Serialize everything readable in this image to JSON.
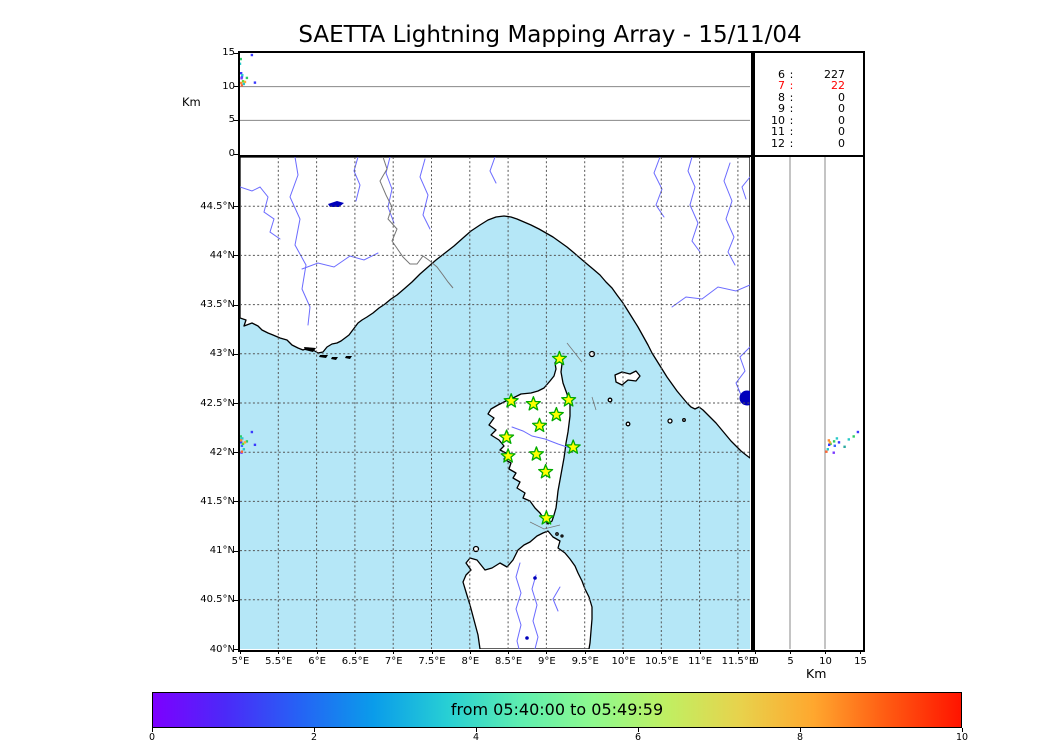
{
  "title": "SAETTA Lightning Mapping Array - 15/11/04",
  "altitude_panel": {
    "ylabel": "Km",
    "yticks": [
      {
        "v": 15,
        "label": "15"
      },
      {
        "v": 10,
        "label": "10"
      },
      {
        "v": 5,
        "label": "5"
      },
      {
        "v": 0,
        "label": "0"
      }
    ]
  },
  "stats_panel": {
    "rows": [
      {
        "label": "6",
        "value": "227",
        "highlight": false
      },
      {
        "label": "7",
        "value": "22",
        "highlight": true
      },
      {
        "label": "8",
        "value": "0",
        "highlight": false
      },
      {
        "label": "9",
        "value": "0",
        "highlight": false
      },
      {
        "label": "10",
        "value": "0",
        "highlight": false
      },
      {
        "label": "11",
        "value": "0",
        "highlight": false
      },
      {
        "label": "12",
        "value": "0",
        "highlight": false
      }
    ],
    "highlight_color": "#ff0000"
  },
  "map_panel": {
    "lat_ticks": [
      {
        "v": 44.5,
        "label": "44.5°N"
      },
      {
        "v": 44,
        "label": "44°N"
      },
      {
        "v": 43.5,
        "label": "43.5°N"
      },
      {
        "v": 43,
        "label": "43°N"
      },
      {
        "v": 42.5,
        "label": "42.5°N"
      },
      {
        "v": 42,
        "label": "42°N"
      },
      {
        "v": 41.5,
        "label": "41.5°N"
      },
      {
        "v": 41,
        "label": "41°N"
      },
      {
        "v": 40.5,
        "label": "40.5°N"
      },
      {
        "v": 40,
        "label": "40°N"
      }
    ],
    "lon_ticks": [
      {
        "v": 5,
        "label": "5°E"
      },
      {
        "v": 5.5,
        "label": "5.5°E"
      },
      {
        "v": 6,
        "label": "6°E"
      },
      {
        "v": 6.5,
        "label": "6.5°E"
      },
      {
        "v": 7,
        "label": "7°E"
      },
      {
        "v": 7.5,
        "label": "7.5°E"
      },
      {
        "v": 8,
        "label": "8°E"
      },
      {
        "v": 8.5,
        "label": "8.5°E"
      },
      {
        "v": 9,
        "label": "9°E"
      },
      {
        "v": 9.5,
        "label": "9.5°E"
      },
      {
        "v": 10,
        "label": "10°E"
      },
      {
        "v": 10.5,
        "label": "10.5°E"
      },
      {
        "v": 11,
        "label": "11°E"
      },
      {
        "v": 11.5,
        "label": "11.5°E"
      }
    ]
  },
  "right_panel": {
    "xlabel": "Km",
    "xticks": [
      {
        "v": 0,
        "label": "0"
      },
      {
        "v": 5,
        "label": "5"
      },
      {
        "v": 10,
        "label": "10"
      },
      {
        "v": 15,
        "label": "15"
      }
    ]
  },
  "colorbar": {
    "label": "from 05:40:00 to 05:49:59",
    "ticks": [
      {
        "v": 0,
        "label": "0"
      },
      {
        "v": 2,
        "label": "2"
      },
      {
        "v": 4,
        "label": "4"
      },
      {
        "v": 6,
        "label": "6"
      },
      {
        "v": 8,
        "label": "8"
      },
      {
        "v": 10,
        "label": "10"
      }
    ],
    "gradient": [
      "#7d00ff",
      "#4b2af8",
      "#2563f5",
      "#0a9cea",
      "#27cfd4",
      "#5eeeb0",
      "#8ef98e",
      "#c0ef62",
      "#e8d24c",
      "#ffa72e",
      "#ff5a12",
      "#ff1400"
    ]
  },
  "colors": {
    "sea": "#b5e7f7",
    "land": "#ffffff",
    "star_fill": "#ffff00",
    "star_stroke": "#00aa00"
  },
  "chart_data": {
    "type": "scatter",
    "title": "SAETTA Lightning Mapping Array - 15/11/04",
    "time_window": {
      "from": "05:40:00",
      "to": "05:49:59"
    },
    "map_extent": {
      "lon_range": [
        5,
        11.66
      ],
      "lat_range": [
        40,
        45
      ]
    },
    "altitude_km_range": [
      0,
      15
    ],
    "colorbar_range": [
      0,
      10
    ],
    "sources_by_min_stations": {
      "6": 227,
      "7": 22,
      "8": 0,
      "9": 0,
      "10": 0,
      "11": 0,
      "12": 0
    },
    "stations": [
      {
        "lon": 9.17,
        "lat": 42.95
      },
      {
        "lon": 8.54,
        "lat": 42.52
      },
      {
        "lon": 8.83,
        "lat": 42.49
      },
      {
        "lon": 9.29,
        "lat": 42.53
      },
      {
        "lon": 9.13,
        "lat": 42.38
      },
      {
        "lon": 8.91,
        "lat": 42.27
      },
      {
        "lon": 8.48,
        "lat": 42.15
      },
      {
        "lon": 9.35,
        "lat": 42.05
      },
      {
        "lon": 8.87,
        "lat": 41.98
      },
      {
        "lon": 8.5,
        "lat": 41.96
      },
      {
        "lon": 8.99,
        "lat": 41.8
      },
      {
        "lon": 9.0,
        "lat": 41.33
      }
    ],
    "sources": [
      {
        "lon": 5.155,
        "lat": 42.205,
        "alt_km": 14.7,
        "color": "#3a3aff"
      },
      {
        "lon": 5.01,
        "lat": 42.16,
        "alt_km": 14.1,
        "color": "#2ecc66"
      },
      {
        "lon": 5.0,
        "lat": 42.13,
        "alt_km": 13.4,
        "color": "#29c8c8"
      },
      {
        "lon": 4.975,
        "lat": 42.055,
        "alt_km": 12.8,
        "color": "#2aa8a0"
      },
      {
        "lon": 5.015,
        "lat": 42.1,
        "alt_km": 12.0,
        "color": "#3a3aff"
      },
      {
        "lon": 5.03,
        "lat": 42.14,
        "alt_km": 11.7,
        "color": "#29c8c8"
      },
      {
        "lon": 5.025,
        "lat": 42.065,
        "alt_km": 11.4,
        "color": "#3a66ff"
      },
      {
        "lon": 5.09,
        "lat": 42.11,
        "alt_km": 11.3,
        "color": "#2ecc66"
      },
      {
        "lon": 5.02,
        "lat": 41.995,
        "alt_km": 11.25,
        "color": "#7a3aff"
      },
      {
        "lon": 5.04,
        "lat": 42.085,
        "alt_km": 10.8,
        "color": "#55dd33"
      },
      {
        "lon": 5.015,
        "lat": 42.12,
        "alt_km": 10.55,
        "color": "#ff8833"
      },
      {
        "lon": 5.065,
        "lat": 42.1,
        "alt_km": 10.7,
        "color": "#ffaa33"
      },
      {
        "lon": 5.195,
        "lat": 42.075,
        "alt_km": 10.6,
        "color": "#3a3aff"
      },
      {
        "lon": 5.025,
        "lat": 42.005,
        "alt_km": 10.2,
        "color": "#ff6633"
      },
      {
        "lon": 5.05,
        "lat": 42.03,
        "alt_km": 10.4,
        "color": "#29c8c8"
      }
    ]
  }
}
